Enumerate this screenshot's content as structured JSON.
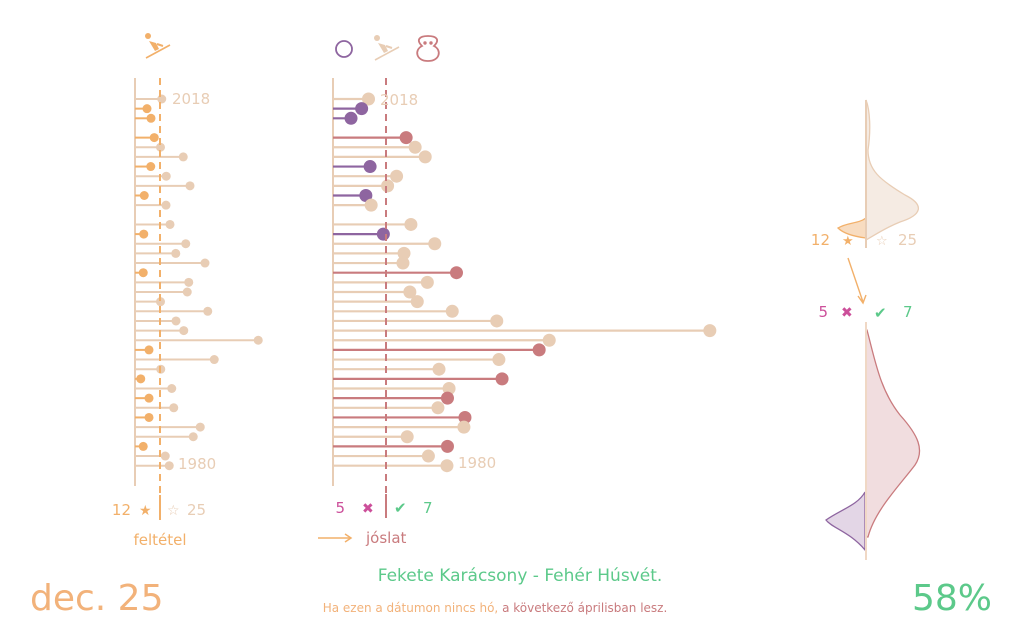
{
  "colors": {
    "base": "#e8cdb5",
    "condition": "#f2b06a",
    "wrong": "#8e65a0",
    "right": "#c97b7e",
    "miss": "#cc4f9a",
    "hit": "#5cc98a"
  },
  "icons": {
    "left_header": "skier-icon",
    "mid_header": [
      "circle-icon",
      "skier-icon",
      "snowman-icon"
    ]
  },
  "footer": {
    "date": "dec. 25",
    "percent": "58%",
    "title": "Fekete Karácsony - Fehér Húsvét.",
    "subtitle_a": "Ha ezen a dátumon nincs hó,",
    "subtitle_b": " a következő áprilisban lesz."
  },
  "legend": {
    "cond_count": "12",
    "cond_star": "★",
    "other_star": "☆",
    "other_count": "25",
    "wrong_count": "5",
    "wrong_mark": "✖",
    "right_mark": "✔",
    "right_count": "7",
    "cond_label": "feltétel",
    "pred_label": "jóslat",
    "arrow": "⟶"
  },
  "chart_data": {
    "type": "lollipop",
    "title": "Fekete Karácsony - Fehér Húsvét.",
    "year_labels": {
      "top": "2018",
      "bottom": "1980"
    },
    "condition_threshold": 10,
    "prediction_threshold": 10,
    "rows": [
      {
        "year": 2018,
        "cond": 10.7,
        "pred": 6.7
      },
      {
        "year": 2017,
        "cond": 4.8,
        "pred": 5.4
      },
      {
        "year": 2016,
        "cond": 6.4,
        "pred": 3.4
      },
      {
        "year": 2015,
        "cond": null,
        "pred": null
      },
      {
        "year": 2014,
        "cond": 7.7,
        "pred": 13.8
      },
      {
        "year": 2013,
        "cond": 10.2,
        "pred": 15.5
      },
      {
        "year": 2012,
        "cond": 19.3,
        "pred": 17.4
      },
      {
        "year": 2011,
        "cond": 6.3,
        "pred": 7.0
      },
      {
        "year": 2010,
        "cond": 12.5,
        "pred": 12.0
      },
      {
        "year": 2009,
        "cond": 22,
        "pred": 10.3
      },
      {
        "year": 2008,
        "cond": 3.7,
        "pred": 6.2
      },
      {
        "year": 2007,
        "cond": 12.4,
        "pred": 7.2
      },
      {
        "year": 2006,
        "cond": null,
        "pred": null
      },
      {
        "year": 2005,
        "cond": 14,
        "pred": 14.7
      },
      {
        "year": 2004,
        "cond": 3.5,
        "pred": 9.5
      },
      {
        "year": 2003,
        "cond": 20.3,
        "pred": 19.2
      },
      {
        "year": 2002,
        "cond": 16.3,
        "pred": 13.4
      },
      {
        "year": 2001,
        "cond": 28,
        "pred": 13.2
      },
      {
        "year": 2000,
        "cond": 3.3,
        "pred": 23.3
      },
      {
        "year": 1999,
        "cond": 21.5,
        "pred": 17.8
      },
      {
        "year": 1998,
        "cond": 20.9,
        "pred": 14.5
      },
      {
        "year": 1997,
        "cond": 10.2,
        "pred": 15.9
      },
      {
        "year": 1996,
        "cond": 29.1,
        "pred": 22.5
      },
      {
        "year": 1995,
        "cond": 16.4,
        "pred": 30.9
      },
      {
        "year": 1994,
        "cond": 19.5,
        "pred": 71.1
      },
      {
        "year": 1993,
        "cond": 49.3,
        "pred": 40.8
      },
      {
        "year": 1992,
        "cond": 5.6,
        "pred": 38.9
      },
      {
        "year": 1991,
        "cond": 31.7,
        "pred": 31.3
      },
      {
        "year": 1990,
        "cond": 10.3,
        "pred": 20
      },
      {
        "year": 1989,
        "cond": 2.3,
        "pred": 31.9
      },
      {
        "year": 1988,
        "cond": 14.7,
        "pred": 21.9
      },
      {
        "year": 1987,
        "cond": 5.6,
        "pred": 21.6
      },
      {
        "year": 1986,
        "cond": 15.5,
        "pred": 19.8
      },
      {
        "year": 1985,
        "cond": 5.6,
        "pred": 24.9
      },
      {
        "year": 1984,
        "cond": 26.1,
        "pred": 24.7
      },
      {
        "year": 1983,
        "cond": 23.3,
        "pred": 14
      },
      {
        "year": 1982,
        "cond": 3.3,
        "pred": 21.6
      },
      {
        "year": 1981,
        "cond": 12.1,
        "pred": 18
      },
      {
        "year": 1980,
        "cond": 13.7,
        "pred": 21.5
      }
    ]
  }
}
